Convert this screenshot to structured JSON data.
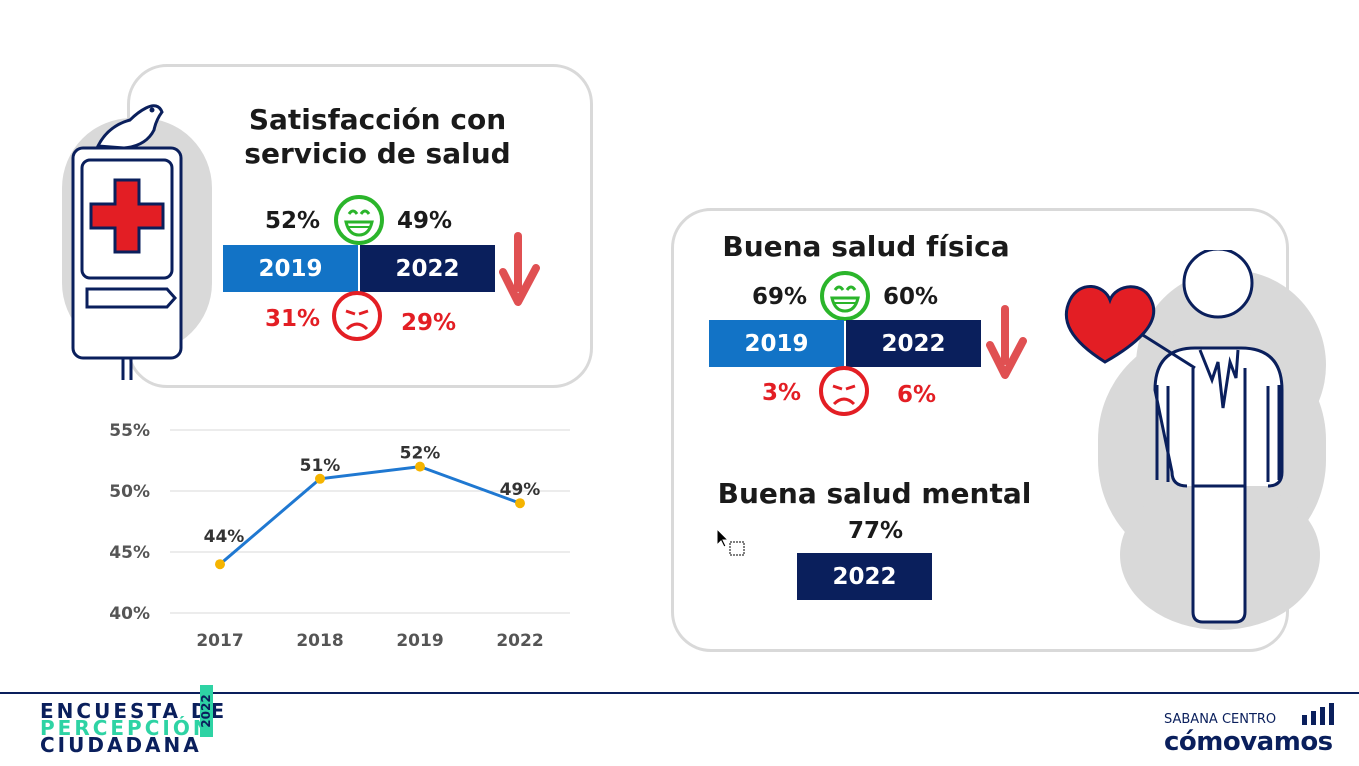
{
  "satisfaccion": {
    "title_line1": "Satisfacción con",
    "title_line2": "servicio de salud",
    "pct_happy_2019": "52%",
    "pct_happy_2022": "49%",
    "pct_sad_2019": "31%",
    "pct_sad_2022": "29%",
    "year_2019": "2019",
    "year_2022": "2022"
  },
  "salud_fisica": {
    "title": "Buena salud física",
    "pct_happy_2019": "69%",
    "pct_happy_2022": "60%",
    "pct_sad_2019": "3%",
    "pct_sad_2022": "6%",
    "year_2019": "2019",
    "year_2022": "2022"
  },
  "salud_mental": {
    "title": "Buena salud mental",
    "pct": "77%",
    "year": "2022"
  },
  "colors": {
    "bar_light": "#1273c6",
    "bar_dark": "#0a1f5c",
    "happy": "#2bb52b",
    "sad": "#e31e24",
    "arrow": "#e05052",
    "line": "#1f78d1",
    "marker": "#f5b400"
  },
  "chart_data": {
    "type": "line",
    "categories": [
      "2017",
      "2018",
      "2019",
      "2022"
    ],
    "values": [
      44,
      51,
      52,
      49
    ],
    "data_labels": [
      "44%",
      "51%",
      "52%",
      "49%"
    ],
    "y_ticks": [
      "55%",
      "50%",
      "45%",
      "40%"
    ],
    "y_tick_values": [
      55,
      50,
      45,
      40
    ],
    "ylim": [
      40,
      55
    ],
    "grid": true
  },
  "footer": {
    "encuesta_line1": "ENCUESTA DE",
    "encuesta_line2": "PERCEPCIÓN",
    "encuesta_line3": "CIUDADANA",
    "encuesta_year": "2022",
    "cv_top": "SABANA CENTRO",
    "cv_bottom": "cómovamos"
  }
}
